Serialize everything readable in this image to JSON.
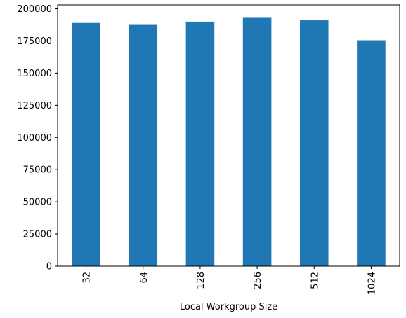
{
  "chart_data": {
    "type": "bar",
    "categories": [
      "32",
      "64",
      "128",
      "256",
      "512",
      "1024"
    ],
    "values": [
      189000,
      188000,
      190000,
      193500,
      191000,
      175500
    ],
    "title": "",
    "xlabel": "Local Workgroup Size",
    "ylabel": "",
    "ylim": [
      0,
      203000
    ],
    "yticks": [
      0,
      25000,
      50000,
      75000,
      100000,
      125000,
      150000,
      175000,
      200000
    ],
    "grid": false,
    "legend": "none",
    "bar_color": "#1f77b4"
  }
}
